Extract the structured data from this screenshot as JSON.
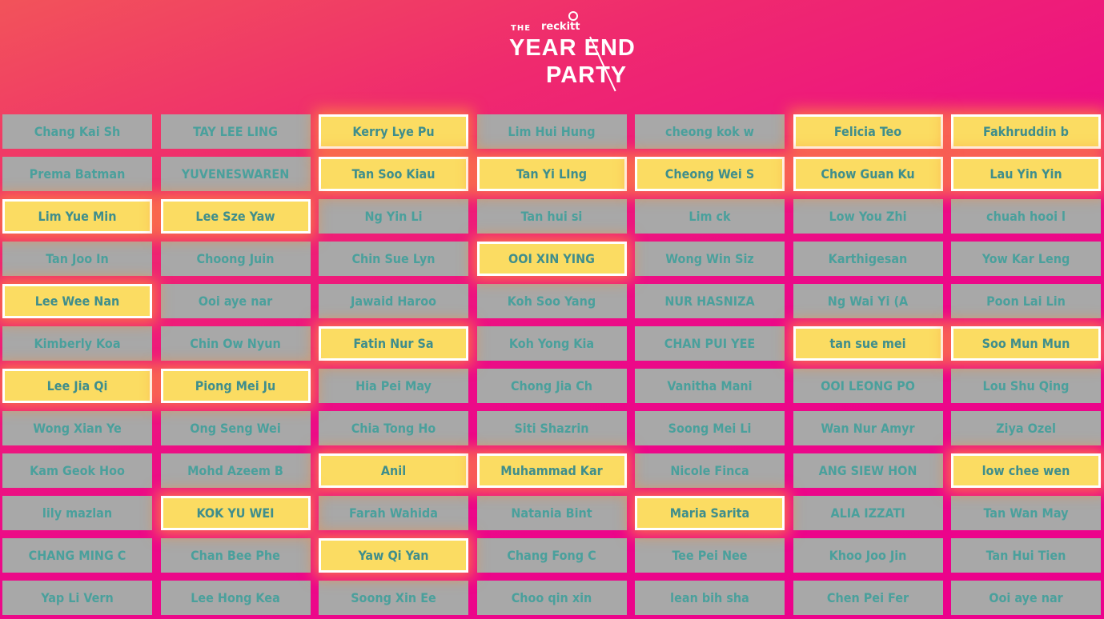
{
  "logo": {
    "the": "THE",
    "brand": "reckitt",
    "line1": "YEAR END",
    "line2": "PARTY"
  },
  "colors": {
    "tile": "#a8a8a8",
    "tile_selected": "#fbdc62",
    "text": "#4aa09c",
    "background": "#ec008c"
  },
  "names": [
    {
      "name": "Chang Kai Sh",
      "selected": false
    },
    {
      "name": "TAY LEE LING",
      "selected": false
    },
    {
      "name": "Kerry Lye Pu",
      "selected": true
    },
    {
      "name": "Lim Hui Hung",
      "selected": false
    },
    {
      "name": "cheong kok w",
      "selected": false
    },
    {
      "name": "Felicia Teo",
      "selected": true
    },
    {
      "name": "Fakhruddin b",
      "selected": true
    },
    {
      "name": "Prema Batman",
      "selected": false
    },
    {
      "name": "YUVENESWAREN",
      "selected": false
    },
    {
      "name": "Tan Soo Kiau",
      "selected": true
    },
    {
      "name": "Tan Yi LIng",
      "selected": true
    },
    {
      "name": "Cheong Wei S",
      "selected": true
    },
    {
      "name": "Chow Guan Ku",
      "selected": true
    },
    {
      "name": "Lau Yin Yin",
      "selected": true
    },
    {
      "name": "Lim Yue Min",
      "selected": true
    },
    {
      "name": "Lee Sze Yaw",
      "selected": true
    },
    {
      "name": "Ng Yin Li",
      "selected": false
    },
    {
      "name": "Tan hui si",
      "selected": false
    },
    {
      "name": "Lim ck",
      "selected": false
    },
    {
      "name": "Low You Zhi",
      "selected": false
    },
    {
      "name": "chuah hooi l",
      "selected": false
    },
    {
      "name": "Tan Joo In",
      "selected": false
    },
    {
      "name": "Choong Juin",
      "selected": false
    },
    {
      "name": "Chin Sue Lyn",
      "selected": false
    },
    {
      "name": "OOI XIN YING",
      "selected": true
    },
    {
      "name": "Wong Win Siz",
      "selected": false
    },
    {
      "name": "Karthigesan",
      "selected": false
    },
    {
      "name": "Yow Kar Leng",
      "selected": false
    },
    {
      "name": "Lee Wee Nan",
      "selected": true
    },
    {
      "name": "Ooi aye nar",
      "selected": false
    },
    {
      "name": "Jawaid Haroo",
      "selected": false
    },
    {
      "name": "Koh Soo Yang",
      "selected": false
    },
    {
      "name": "NUR HASNIZA",
      "selected": false
    },
    {
      "name": "Ng Wai Yi (A",
      "selected": false
    },
    {
      "name": "Poon Lai Lin",
      "selected": false
    },
    {
      "name": "Kimberly Koa",
      "selected": false
    },
    {
      "name": "Chin Ow Nyun",
      "selected": false
    },
    {
      "name": "Fatin Nur Sa",
      "selected": true
    },
    {
      "name": "Koh Yong Kia",
      "selected": false
    },
    {
      "name": "CHAN PUI YEE",
      "selected": false
    },
    {
      "name": "tan sue mei",
      "selected": true
    },
    {
      "name": "Soo Mun Mun",
      "selected": true
    },
    {
      "name": "Lee Jia Qi",
      "selected": true
    },
    {
      "name": "Piong Mei Ju",
      "selected": true
    },
    {
      "name": "Hia Pei May",
      "selected": false
    },
    {
      "name": "Chong Jia Ch",
      "selected": false
    },
    {
      "name": "Vanitha Mani",
      "selected": false
    },
    {
      "name": "OOI LEONG PO",
      "selected": false
    },
    {
      "name": "Lou Shu Qing",
      "selected": false
    },
    {
      "name": "Wong Xian Ye",
      "selected": false
    },
    {
      "name": "Ong Seng Wei",
      "selected": false
    },
    {
      "name": "Chia Tong Ho",
      "selected": false
    },
    {
      "name": "Siti Shazrin",
      "selected": false
    },
    {
      "name": "Soong Mei Li",
      "selected": false
    },
    {
      "name": "Wan Nur Amyr",
      "selected": false
    },
    {
      "name": "Ziya Ozel",
      "selected": false
    },
    {
      "name": "Kam Geok Hoo",
      "selected": false
    },
    {
      "name": "Mohd Azeem B",
      "selected": false
    },
    {
      "name": "Anil",
      "selected": true
    },
    {
      "name": "Muhammad Kar",
      "selected": true
    },
    {
      "name": "Nicole Finca",
      "selected": false
    },
    {
      "name": "ANG SIEW HON",
      "selected": false
    },
    {
      "name": "low chee wen",
      "selected": true
    },
    {
      "name": "lily mazlan",
      "selected": false
    },
    {
      "name": "KOK YU WEI",
      "selected": true
    },
    {
      "name": "Farah Wahida",
      "selected": false
    },
    {
      "name": "Natania Bint",
      "selected": false
    },
    {
      "name": "Maria Sarita",
      "selected": true
    },
    {
      "name": "ALIA IZZATI",
      "selected": false
    },
    {
      "name": "Tan Wan May",
      "selected": false
    },
    {
      "name": "CHANG MING C",
      "selected": false
    },
    {
      "name": "Chan Bee Phe",
      "selected": false
    },
    {
      "name": "Yaw Qi Yan",
      "selected": true
    },
    {
      "name": "Chang Fong C",
      "selected": false
    },
    {
      "name": "Tee Pei Nee",
      "selected": false
    },
    {
      "name": "Khoo Joo Jin",
      "selected": false
    },
    {
      "name": "Tan Hui Tien",
      "selected": false
    },
    {
      "name": "Yap Li Vern",
      "selected": false
    },
    {
      "name": "Lee Hong Kea",
      "selected": false
    },
    {
      "name": "Soong Xin Ee",
      "selected": false
    },
    {
      "name": "Choo qin xin",
      "selected": false
    },
    {
      "name": "lean bih sha",
      "selected": false
    },
    {
      "name": "Chen Pei Fer",
      "selected": false
    },
    {
      "name": "Ooi aye nar",
      "selected": false
    }
  ]
}
